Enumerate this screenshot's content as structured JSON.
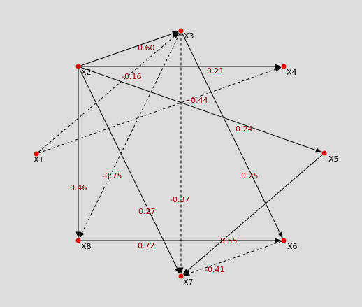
{
  "colors": {
    "background": "#dcdcdc",
    "edge": "#000000",
    "node_fill": "#e60000",
    "node_label": "#000000",
    "edge_label": "#990000"
  },
  "diagram": {
    "nodes": [
      {
        "id": "X1",
        "label": "X1"
      },
      {
        "id": "X2",
        "label": "X2"
      },
      {
        "id": "X3",
        "label": "X3"
      },
      {
        "id": "X4",
        "label": "X4"
      },
      {
        "id": "X5",
        "label": "X5"
      },
      {
        "id": "X6",
        "label": "X6"
      },
      {
        "id": "X7",
        "label": "X7"
      },
      {
        "id": "X8",
        "label": "X8"
      }
    ],
    "edges": [
      {
        "from": "X2",
        "to": "X3",
        "weight": "0.60",
        "style": "solid"
      },
      {
        "from": "X2",
        "to": "X4",
        "weight": "0.21",
        "style": "solid"
      },
      {
        "from": "X2",
        "to": "X5",
        "weight": "0.24",
        "style": "solid"
      },
      {
        "from": "X2",
        "to": "X8",
        "weight": "0.46",
        "style": "solid"
      },
      {
        "from": "X2",
        "to": "X7",
        "weight": "0.27",
        "style": "solid"
      },
      {
        "from": "X3",
        "to": "X6",
        "weight": "0.25",
        "style": "solid"
      },
      {
        "from": "X8",
        "to": "X6",
        "weight": "0.72",
        "style": "solid"
      },
      {
        "from": "X5",
        "to": "X7",
        "weight": "0.55",
        "style": "solid"
      },
      {
        "from": "X1",
        "to": "X3",
        "weight": "-0.16",
        "style": "dashed"
      },
      {
        "from": "X1",
        "to": "X4",
        "weight": "-0.44",
        "style": "dashed"
      },
      {
        "from": "X3",
        "to": "X8",
        "weight": "-0.75",
        "style": "dashed"
      },
      {
        "from": "X3",
        "to": "X7",
        "weight": "-0.37",
        "style": "dashed"
      },
      {
        "from": "X6",
        "to": "X7",
        "weight": "-0.41",
        "style": "dashed"
      }
    ]
  }
}
